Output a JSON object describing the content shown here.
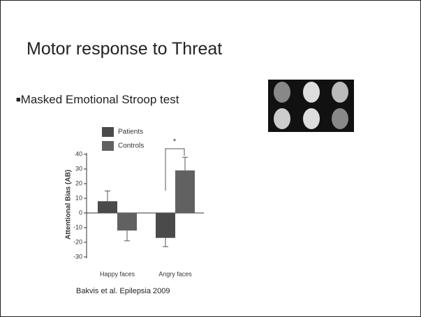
{
  "slide": {
    "title": "Motor response to Threat",
    "bullet": "Masked Emotional Stroop test",
    "citation": "Bakvis et al. Epilepsia 2009"
  },
  "chart_data": {
    "type": "bar",
    "ylabel": "Attentional Bias (AB)",
    "categories": [
      "Happy faces",
      "Angry faces"
    ],
    "series": [
      {
        "name": "Patients",
        "color": "#4a4a4a",
        "values": [
          8,
          -17
        ],
        "errors": [
          7,
          6
        ]
      },
      {
        "name": "Controls",
        "color": "#616161",
        "values": [
          -12,
          29
        ],
        "errors": [
          7,
          9
        ]
      }
    ],
    "ylim": [
      -30,
      40
    ],
    "yticks": [
      -30,
      -20,
      -10,
      0,
      10,
      20,
      30,
      40
    ],
    "annotation": "*",
    "legend": "top-left"
  }
}
